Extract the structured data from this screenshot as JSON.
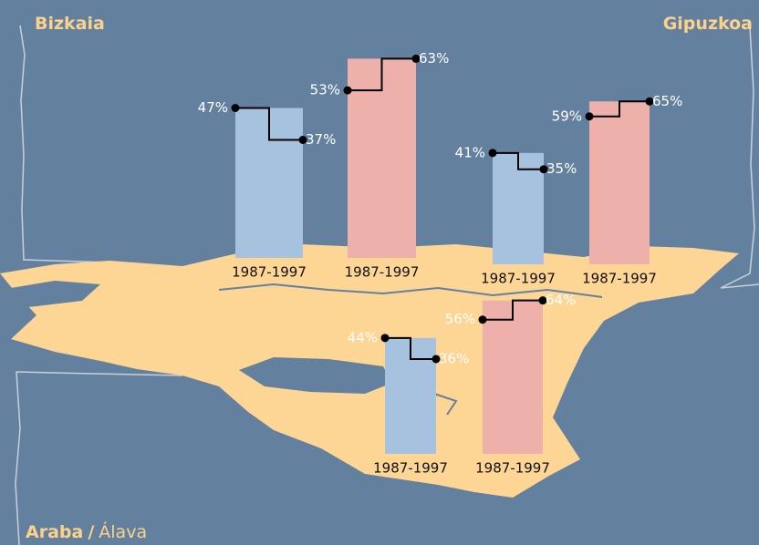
{
  "regions": [
    {
      "name_parts": [
        "Bizkaia"
      ],
      "bars": [
        {
          "period": "1987-1997",
          "values": [
            47,
            37
          ],
          "value_labels": [
            "47%",
            "37%"
          ],
          "color": "#a7c2df"
        },
        {
          "period": "1987-1997",
          "values": [
            53,
            63
          ],
          "value_labels": [
            "53%",
            "63%"
          ],
          "color": "#edb0aa"
        }
      ]
    },
    {
      "name_parts": [
        "Gipuzkoa"
      ],
      "bars": [
        {
          "period": "1987-1997",
          "values": [
            41,
            35
          ],
          "value_labels": [
            "41%",
            "35%"
          ],
          "color": "#a7c2df"
        },
        {
          "period": "1987-1997",
          "values": [
            59,
            65
          ],
          "value_labels": [
            "59%",
            "65%"
          ],
          "color": "#edb0aa"
        }
      ]
    },
    {
      "name_parts": [
        "Araba",
        "/",
        "Álava"
      ],
      "bars": [
        {
          "period": "1987-1997",
          "values": [
            44,
            36
          ],
          "value_labels": [
            "44%",
            "36%"
          ],
          "color": "#a7c2df"
        },
        {
          "period": "1987-1997",
          "values": [
            56,
            64
          ],
          "value_labels": [
            "56%",
            "64%"
          ],
          "color": "#edb0aa"
        }
      ]
    }
  ]
}
